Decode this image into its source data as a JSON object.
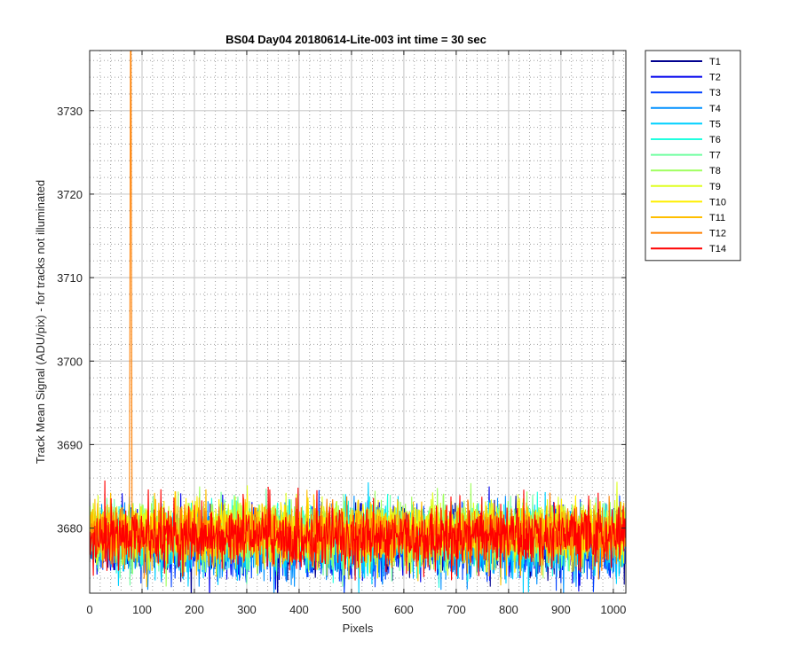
{
  "chart_data": {
    "type": "line",
    "title": "BS04 Day04 20180614-Lite-003 int time = 30 sec",
    "xlabel": "Pixels",
    "ylabel": "Track Mean Signal (ADU/pix) - for tracks not illuminated",
    "xlim": [
      0,
      1024
    ],
    "ylim": [
      3672.2,
      3737.2
    ],
    "x_ticks": [
      0,
      100,
      200,
      300,
      400,
      500,
      600,
      700,
      800,
      900,
      1000
    ],
    "y_ticks": [
      3680,
      3690,
      3700,
      3710,
      3720,
      3730
    ],
    "grid": true,
    "minor_grid": true,
    "legend_position": "outside-right",
    "n_points": 1024,
    "series": [
      {
        "name": "T1",
        "color": "#00008f",
        "baseline": 3678.5,
        "spread": 3.2
      },
      {
        "name": "T2",
        "color": "#0000ee",
        "baseline": 3678.4,
        "spread": 3.2
      },
      {
        "name": "T3",
        "color": "#0040ff",
        "baseline": 3678.2,
        "spread": 3.3
      },
      {
        "name": "T4",
        "color": "#0090ff",
        "baseline": 3678.0,
        "spread": 3.4
      },
      {
        "name": "T5",
        "color": "#00d0ff",
        "baseline": 3678.3,
        "spread": 3.3
      },
      {
        "name": "T6",
        "color": "#20ffdf",
        "baseline": 3679.0,
        "spread": 3.0
      },
      {
        "name": "T7",
        "color": "#70ffa0",
        "baseline": 3679.3,
        "spread": 3.0
      },
      {
        "name": "T8",
        "color": "#a0ff60",
        "baseline": 3679.5,
        "spread": 3.0
      },
      {
        "name": "T9",
        "color": "#dfff20",
        "baseline": 3679.6,
        "spread": 3.0
      },
      {
        "name": "T10",
        "color": "#ffef00",
        "baseline": 3679.6,
        "spread": 2.9
      },
      {
        "name": "T11",
        "color": "#ffbf00",
        "baseline": 3679.3,
        "spread": 3.0
      },
      {
        "name": "T12",
        "color": "#ff7f00",
        "baseline": 3679.2,
        "spread": 3.0,
        "spike": {
          "x_from": 77,
          "x_to": 80,
          "y_peak": 3737.2
        }
      },
      {
        "name": "T14",
        "color": "#ff0000",
        "baseline": 3678.9,
        "spread": 3.0
      }
    ]
  }
}
